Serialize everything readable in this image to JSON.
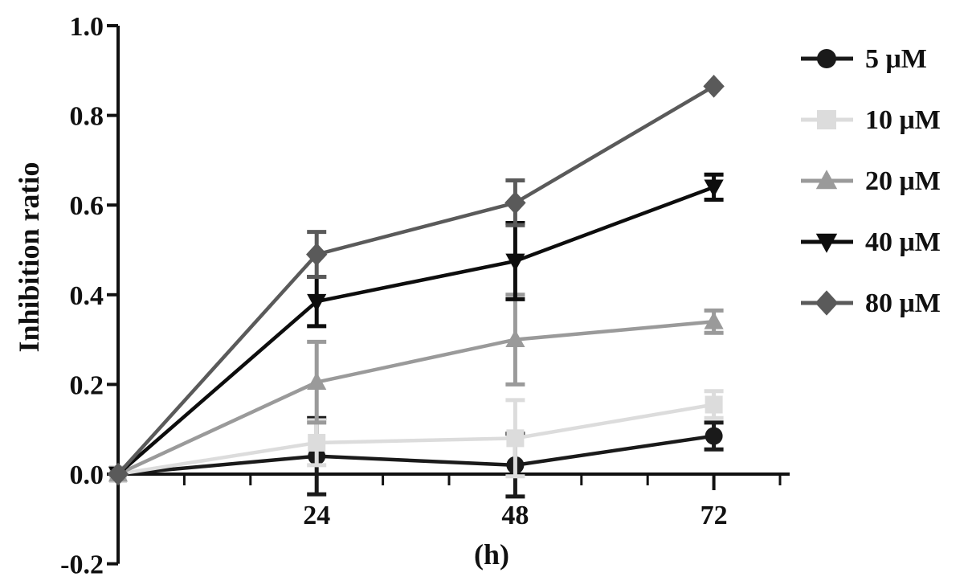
{
  "chart_data": {
    "type": "line",
    "title": "",
    "xlabel": "(h)",
    "ylabel": "Inhibition ratio",
    "x": [
      0,
      24,
      48,
      72
    ],
    "x_tick_labels": [
      "24",
      "48",
      "72"
    ],
    "x_ticks": [
      24,
      48,
      72
    ],
    "xlim": [
      0,
      80
    ],
    "ylim": [
      -0.2,
      1.0
    ],
    "y_ticks": [
      -0.2,
      0.0,
      0.2,
      0.4,
      0.6,
      0.8,
      1.0
    ],
    "y_tick_labels": [
      "-0.2",
      "0.0",
      "0.2",
      "0.4",
      "0.6",
      "0.8",
      "1.0"
    ],
    "grid": false,
    "legend_position": "right",
    "series": [
      {
        "name": "5 μM",
        "marker": "circle",
        "color": "#1a1a1a",
        "values": [
          0,
          0.04,
          0.02,
          0.085
        ],
        "errors": [
          0,
          0.085,
          0.07,
          0.03
        ]
      },
      {
        "name": "10 μM",
        "marker": "square",
        "color": "#dcdcdc",
        "values": [
          0,
          0.07,
          0.08,
          0.155
        ],
        "errors": [
          0,
          0.05,
          0.085,
          0.03
        ]
      },
      {
        "name": "20 μM",
        "marker": "triangle-up",
        "color": "#9a9a9a",
        "values": [
          0,
          0.205,
          0.3,
          0.34
        ],
        "errors": [
          0,
          0.09,
          0.1,
          0.025
        ]
      },
      {
        "name": "40 μM",
        "marker": "triangle-down",
        "color": "#0d0d0d",
        "values": [
          0,
          0.385,
          0.475,
          0.64
        ],
        "errors": [
          0,
          0.055,
          0.085,
          0.028
        ]
      },
      {
        "name": "80 μM",
        "marker": "diamond",
        "color": "#5a5a5a",
        "values": [
          0,
          0.49,
          0.605,
          0.865
        ],
        "errors": [
          0,
          0.05,
          0.05,
          0
        ]
      }
    ]
  }
}
